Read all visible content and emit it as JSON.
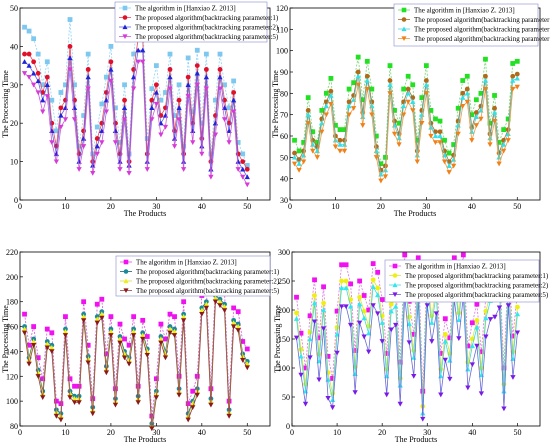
{
  "chart_data": [
    {
      "type": "line",
      "xlabel": "The Products",
      "ylabel": "The Processing Time",
      "xlim": [
        0,
        55
      ],
      "ylim": [
        0,
        50
      ],
      "xticks": [
        0,
        10,
        20,
        30,
        40,
        50
      ],
      "yticks": [
        0,
        10,
        20,
        30,
        40,
        50
      ],
      "legend_position": "top-center",
      "series": [
        {
          "name": "The algorithm in [Hanxiao Z. 2013]",
          "color": "#7ec8f0",
          "line_color": "#8fd3f8",
          "marker": "square",
          "values": [
            45,
            44,
            42,
            38,
            30,
            36,
            26,
            18,
            28,
            30,
            47,
            30,
            14,
            22,
            38,
            12,
            19,
            25,
            32,
            40,
            24,
            15,
            30,
            12,
            38,
            47,
            47,
            16,
            29,
            35,
            26,
            28,
            38,
            22,
            30,
            14,
            37,
            23,
            39,
            20,
            38,
            12,
            26,
            38,
            30,
            24,
            31,
            15,
            12,
            9
          ]
        },
        {
          "name": "The proposed algorithm(backtracking parameter:1)",
          "color": "#e0102a",
          "line_color": "#e84a5f",
          "marker": "circle",
          "values": [
            38,
            38,
            36,
            33,
            28,
            32,
            20,
            14,
            24,
            26,
            40,
            26,
            12,
            18,
            34,
            10,
            16,
            20,
            28,
            36,
            20,
            12,
            26,
            10,
            34,
            42,
            42,
            12,
            26,
            30,
            22,
            24,
            34,
            18,
            26,
            12,
            32,
            20,
            35,
            16,
            34,
            10,
            22,
            34,
            26,
            20,
            28,
            12,
            10,
            8
          ]
        },
        {
          "name": "The proposed algorithm(backtracking parameter:2)",
          "color": "#1f24d8",
          "line_color": "#5a64e8",
          "marker": "triangle",
          "values": [
            36,
            35,
            33,
            31,
            26,
            30,
            18,
            12,
            22,
            24,
            37,
            24,
            10,
            16,
            32,
            9,
            14,
            18,
            26,
            34,
            18,
            10,
            24,
            9,
            32,
            39,
            39,
            10,
            24,
            28,
            20,
            22,
            32,
            16,
            24,
            10,
            30,
            18,
            33,
            14,
            32,
            8,
            20,
            32,
            24,
            18,
            26,
            10,
            8,
            6
          ]
        },
        {
          "name": "The proposed algorithm(backtracking parameter:5)",
          "color": "#d83ad8",
          "line_color": "#c95ad6",
          "marker": "triangle-down",
          "values": [
            33,
            32,
            30,
            28,
            23,
            27,
            15,
            10,
            19,
            21,
            34,
            21,
            8,
            14,
            29,
            7,
            12,
            15,
            23,
            31,
            15,
            8,
            21,
            7,
            29,
            36,
            36,
            8,
            21,
            25,
            17,
            19,
            29,
            14,
            21,
            8,
            27,
            15,
            30,
            12,
            29,
            6,
            17,
            29,
            21,
            15,
            23,
            8,
            6,
            4
          ]
        }
      ]
    },
    {
      "type": "line",
      "xlabel": "The Products",
      "ylabel": "The Processing Time",
      "xlim": [
        0,
        55
      ],
      "ylim": [
        30,
        120
      ],
      "xticks": [
        0,
        10,
        20,
        30,
        40,
        50
      ],
      "yticks": [
        30,
        40,
        50,
        60,
        70,
        80,
        90,
        100,
        110,
        120
      ],
      "legend_position": "top-center",
      "series": [
        {
          "name": "The algorithm in [Hanxiao Z. 2013]",
          "color": "#22e022",
          "line_color": "#6ed86e",
          "marker": "square",
          "values": [
            58,
            53,
            57,
            78,
            62,
            57,
            72,
            80,
            87,
            65,
            63,
            63,
            82,
            85,
            97,
            77,
            95,
            82,
            60,
            47,
            50,
            93,
            72,
            66,
            82,
            88,
            84,
            58,
            78,
            93,
            72,
            68,
            67,
            58,
            52,
            56,
            73,
            86,
            88,
            70,
            77,
            80,
            96,
            66,
            79,
            57,
            63,
            68,
            94,
            95
          ]
        },
        {
          "name": "The proposed algorithm(backtracking parameter:1)",
          "color": "#b06a1a",
          "line_color": "#a0702a",
          "marker": "circle",
          "values": [
            52,
            49,
            53,
            72,
            58,
            55,
            68,
            76,
            81,
            60,
            58,
            58,
            76,
            79,
            90,
            71,
            88,
            76,
            55,
            44,
            46,
            86,
            67,
            61,
            76,
            82,
            78,
            53,
            72,
            86,
            66,
            62,
            62,
            53,
            48,
            51,
            67,
            80,
            82,
            64,
            71,
            74,
            88,
            61,
            73,
            52,
            58,
            63,
            88,
            89
          ]
        },
        {
          "name": "The proposed algorithm(backtracking parameter:2)",
          "color": "#33e0e8",
          "line_color": "#55d0d8",
          "marker": "triangle",
          "values": [
            50,
            47,
            51,
            70,
            56,
            53,
            66,
            74,
            79,
            58,
            56,
            56,
            74,
            77,
            88,
            69,
            86,
            74,
            53,
            42,
            44,
            84,
            65,
            59,
            74,
            80,
            76,
            51,
            70,
            84,
            64,
            60,
            60,
            51,
            46,
            49,
            65,
            78,
            80,
            62,
            69,
            72,
            86,
            59,
            71,
            50,
            56,
            61,
            86,
            87
          ]
        },
        {
          "name": "The proposed algorithm(backtracking parameter:5)",
          "color": "#f08018",
          "line_color": "#f09a40",
          "marker": "triangle-down",
          "values": [
            47,
            44,
            48,
            66,
            53,
            50,
            62,
            70,
            75,
            55,
            53,
            53,
            70,
            73,
            84,
            65,
            82,
            70,
            50,
            39,
            41,
            80,
            61,
            56,
            70,
            76,
            72,
            48,
            66,
            80,
            60,
            57,
            57,
            48,
            43,
            46,
            61,
            74,
            76,
            58,
            65,
            68,
            82,
            56,
            67,
            47,
            53,
            58,
            82,
            83
          ]
        }
      ]
    },
    {
      "type": "line",
      "xlabel": "The Products",
      "ylabel": "The Processing Time",
      "xlim": [
        0,
        55
      ],
      "ylim": [
        80,
        220
      ],
      "xticks": [
        0,
        10,
        20,
        30,
        40,
        50
      ],
      "yticks": [
        80,
        100,
        120,
        140,
        160,
        180,
        200,
        220
      ],
      "legend_position": "top-center",
      "series": [
        {
          "name": "The algorithm in [Hanxiao Z. 2013]",
          "color": "#f010f0",
          "line_color": "#e050e0",
          "marker": "square",
          "values": [
            170,
            145,
            160,
            135,
            118,
            158,
            155,
            100,
            98,
            168,
            118,
            112,
            112,
            180,
            145,
            102,
            178,
            182,
            138,
            168,
            110,
            162,
            150,
            145,
            168,
            112,
            165,
            152,
            88,
            118,
            162,
            150,
            170,
            168,
            120,
            180,
            98,
            108,
            120,
            185,
            190,
            110,
            195,
            192,
            188,
            100,
            175,
            172,
            148,
            142
          ]
        },
        {
          "name": "The proposed algorithm(backtracking parameter:1)",
          "color": "#1a8a9a",
          "line_color": "#1a6070",
          "marker": "circle",
          "values": [
            160,
            135,
            150,
            125,
            108,
            148,
            145,
            93,
            90,
            158,
            108,
            104,
            104,
            170,
            136,
            95,
            168,
            172,
            128,
            158,
            102,
            152,
            140,
            135,
            158,
            104,
            155,
            142,
            82,
            108,
            152,
            140,
            160,
            158,
            110,
            170,
            90,
            100,
            110,
            175,
            180,
            102,
            185,
            182,
            178,
            93,
            165,
            162,
            138,
            132
          ]
        },
        {
          "name": "The proposed algorithm(backtracking parameter:2)",
          "color": "#f0f010",
          "line_color": "#d8d850",
          "marker": "triangle",
          "values": [
            158,
            133,
            148,
            123,
            106,
            146,
            143,
            91,
            88,
            156,
            106,
            102,
            102,
            168,
            134,
            93,
            166,
            170,
            126,
            156,
            100,
            150,
            138,
            133,
            156,
            102,
            153,
            140,
            80,
            106,
            150,
            138,
            158,
            156,
            108,
            168,
            88,
            98,
            108,
            173,
            178,
            100,
            183,
            180,
            176,
            91,
            163,
            160,
            136,
            130
          ]
        },
        {
          "name": "The proposed algorithm(backtracking parameter:5)",
          "color": "#8a1a1a",
          "line_color": "#a04040",
          "marker": "triangle-down",
          "values": [
            155,
            130,
            145,
            120,
            103,
            143,
            140,
            88,
            85,
            153,
            103,
            99,
            99,
            165,
            131,
            90,
            163,
            167,
            123,
            153,
            97,
            147,
            135,
            130,
            153,
            99,
            150,
            137,
            78,
            103,
            147,
            135,
            155,
            153,
            105,
            165,
            85,
            95,
            105,
            170,
            175,
            97,
            180,
            177,
            173,
            88,
            160,
            157,
            133,
            127
          ]
        }
      ]
    },
    {
      "type": "line",
      "xlabel": "The Products",
      "ylabel": "The Processing Time",
      "xlim": [
        0,
        55
      ],
      "ylim": [
        0,
        300
      ],
      "xticks": [
        0,
        10,
        20,
        30,
        40,
        50
      ],
      "yticks": [
        0,
        50,
        100,
        150,
        200,
        250,
        300
      ],
      "legend_position": "top-center",
      "series": [
        {
          "name": "The algorithm in [Hanxiao Z. 2013]",
          "color": "#f010f0",
          "line_color": "#e070e8",
          "marker": "square",
          "values": [
            222,
            160,
            100,
            190,
            252,
            152,
            240,
            120,
            82,
            198,
            278,
            278,
            245,
            130,
            250,
            225,
            200,
            280,
            265,
            218,
            125,
            238,
            245,
            110,
            295,
            215,
            158,
            290,
            60,
            280,
            218,
            265,
            125,
            185,
            152,
            290,
            222,
            295,
            138,
            178,
            210,
            128,
            225,
            255,
            260,
            275,
            100,
            280,
            155,
            232
          ]
        },
        {
          "name": "The proposed algorithm(backtracking parameter:1)",
          "color": "#f0f010",
          "line_color": "#e0e040",
          "marker": "circle",
          "values": [
            195,
            132,
            72,
            162,
            225,
            124,
            212,
            92,
            56,
            170,
            250,
            250,
            218,
            102,
            222,
            198,
            172,
            252,
            238,
            190,
            98,
            210,
            218,
            82,
            268,
            188,
            130,
            262,
            34,
            252,
            190,
            238,
            98,
            158,
            125,
            262,
            195,
            268,
            110,
            150,
            182,
            100,
            198,
            228,
            232,
            248,
            72,
            252,
            128,
            205
          ]
        },
        {
          "name": "The proposed algorithm(backtracking parameter:2)",
          "color": "#30e8f0",
          "line_color": "#40d8e0",
          "marker": "triangle",
          "values": [
            185,
            120,
            60,
            150,
            212,
            112,
            200,
            80,
            45,
            158,
            238,
            238,
            206,
            90,
            210,
            186,
            160,
            240,
            226,
            178,
            86,
            198,
            206,
            70,
            256,
            176,
            118,
            250,
            22,
            240,
            178,
            226,
            86,
            146,
            113,
            250,
            183,
            256,
            98,
            138,
            170,
            88,
            186,
            216,
            220,
            236,
            60,
            240,
            116,
            193
          ]
        },
        {
          "name": "The proposed algorithm(backtracking parameter:5)",
          "color": "#7a1ae8",
          "line_color": "#6a6ad8",
          "marker": "triangle-down",
          "values": [
            152,
            88,
            38,
            118,
            180,
            80,
            168,
            48,
            32,
            126,
            206,
            206,
            174,
            58,
            178,
            154,
            128,
            208,
            194,
            146,
            54,
            166,
            174,
            38,
            224,
            144,
            86,
            218,
            12,
            208,
            146,
            194,
            54,
            114,
            81,
            218,
            151,
            224,
            66,
            106,
            138,
            56,
            154,
            184,
            188,
            204,
            30,
            208,
            84,
            161
          ]
        }
      ]
    }
  ]
}
